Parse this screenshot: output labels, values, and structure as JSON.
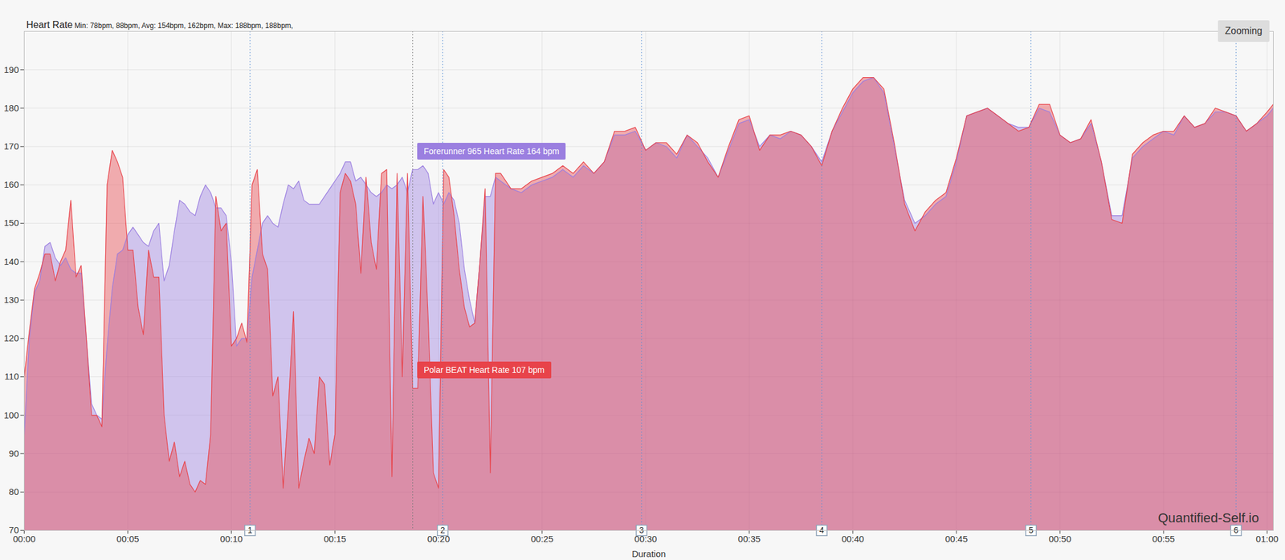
{
  "chart_data": {
    "type": "area",
    "title": "Heart Rate",
    "subtitle": "Min: 78bpm, 88bpm, Avg: 154bpm, 162bpm, Max: 188bpm, 188bpm,",
    "xlabel": "Duration",
    "button": "Zooming",
    "watermark": "Quantified-Self.io",
    "grid": true,
    "xlim": [
      0,
      60.3
    ],
    "ylim": [
      70,
      200
    ],
    "yticks": [
      70,
      80,
      90,
      100,
      110,
      120,
      130,
      140,
      150,
      160,
      170,
      180,
      190
    ],
    "xticks": [
      {
        "value": 0,
        "label": "00:00"
      },
      {
        "value": 5,
        "label": "00:05"
      },
      {
        "value": 10,
        "label": "00:10"
      },
      {
        "value": 15,
        "label": "00:15"
      },
      {
        "value": 20,
        "label": "00:20"
      },
      {
        "value": 25,
        "label": "00:25"
      },
      {
        "value": 30,
        "label": "00:30"
      },
      {
        "value": 35,
        "label": "00:35"
      },
      {
        "value": 40,
        "label": "00:40"
      },
      {
        "value": 45,
        "label": "00:45"
      },
      {
        "value": 50,
        "label": "00:50"
      },
      {
        "value": 55,
        "label": "00:55"
      },
      {
        "value": 60,
        "label": "01:00"
      }
    ],
    "laps": [
      {
        "x": 10.9,
        "label": "1"
      },
      {
        "x": 20.2,
        "label": "2"
      },
      {
        "x": 29.8,
        "label": "3"
      },
      {
        "x": 38.5,
        "label": "4"
      },
      {
        "x": 48.6,
        "label": "5"
      },
      {
        "x": 58.5,
        "label": "6"
      }
    ],
    "tooltip": {
      "x": 18.75,
      "values": [
        164,
        107
      ],
      "labels": [
        "Forerunner 965 Heart Rate 164 bpm",
        "Polar BEAT Heart Rate 107 bpm"
      ]
    },
    "x": [
      0,
      0.25,
      0.5,
      0.75,
      1,
      1.25,
      1.5,
      1.75,
      2,
      2.25,
      2.5,
      2.75,
      3,
      3.25,
      3.5,
      3.75,
      4,
      4.25,
      4.5,
      4.75,
      5,
      5.25,
      5.5,
      5.75,
      6,
      6.25,
      6.5,
      6.75,
      7,
      7.25,
      7.5,
      7.75,
      8,
      8.25,
      8.5,
      8.75,
      9,
      9.25,
      9.5,
      9.75,
      10,
      10.25,
      10.5,
      10.75,
      11,
      11.25,
      11.5,
      11.75,
      12,
      12.25,
      12.5,
      12.75,
      13,
      13.25,
      13.5,
      13.75,
      14,
      14.25,
      14.5,
      14.75,
      15,
      15.25,
      15.5,
      15.75,
      16,
      16.25,
      16.5,
      16.75,
      17,
      17.25,
      17.5,
      17.75,
      18,
      18.25,
      18.5,
      18.75,
      19,
      19.25,
      19.5,
      19.75,
      20,
      20.25,
      20.5,
      20.75,
      21,
      21.25,
      21.5,
      21.75,
      22,
      22.25,
      22.5,
      22.75,
      23,
      23.5,
      24,
      24.5,
      25,
      25.5,
      26,
      26.5,
      27,
      27.5,
      28,
      28.5,
      29,
      29.5,
      30,
      30.5,
      31,
      31.5,
      32,
      32.5,
      33,
      33.5,
      34,
      34.5,
      35,
      35.5,
      36,
      36.5,
      37,
      37.5,
      38,
      38.5,
      39,
      39.5,
      40,
      40.5,
      41,
      41.5,
      42,
      42.5,
      43,
      43.5,
      44,
      44.5,
      45,
      45.5,
      46,
      46.5,
      47,
      47.5,
      48,
      48.5,
      49,
      49.5,
      50,
      50.5,
      51,
      51.5,
      52,
      52.5,
      53,
      53.5,
      54,
      54.5,
      55,
      55.5,
      56,
      56.5,
      57,
      57.5,
      58,
      58.5,
      59,
      59.5,
      60,
      60.3
    ],
    "series": [
      {
        "name": "Forerunner 965",
        "color": "#9b7fe0",
        "values": [
          95,
          120,
          132,
          135,
          144,
          145,
          141,
          139,
          141,
          138,
          137,
          137,
          120,
          103,
          100,
          99,
          118,
          133,
          142,
          143,
          147,
          149,
          147,
          145,
          144,
          148,
          150,
          135,
          139,
          148,
          156,
          155,
          153,
          152,
          157,
          160,
          158,
          154,
          154,
          152,
          140,
          118,
          120,
          120,
          136,
          143,
          150,
          152,
          150,
          149,
          155,
          160,
          159,
          161,
          156,
          155,
          155,
          155,
          157,
          159,
          161,
          163,
          166,
          166,
          161,
          162,
          160,
          158,
          157,
          158,
          160,
          159,
          160,
          162,
          158,
          164,
          164,
          165,
          163,
          155,
          158,
          155,
          158,
          156,
          150,
          138,
          130,
          124,
          140,
          157,
          157,
          162,
          161,
          159,
          158,
          160,
          161,
          162,
          164,
          162,
          165,
          163,
          166,
          173,
          173,
          174,
          169,
          171,
          170,
          167,
          173,
          170,
          167,
          162,
          169,
          176,
          177,
          170,
          173,
          172,
          174,
          173,
          170,
          166,
          174,
          179,
          184,
          187,
          188,
          184,
          170,
          156,
          150,
          152,
          155,
          157,
          166,
          178,
          179,
          180,
          178,
          176,
          175,
          175,
          180,
          179,
          173,
          171,
          172,
          176,
          166,
          152,
          152,
          167,
          170,
          172,
          174,
          173,
          178,
          175,
          176,
          179,
          179,
          178,
          174,
          176,
          178,
          180
        ]
      },
      {
        "name": "Polar BEAT",
        "color": "#e8434a",
        "values": [
          110,
          122,
          133,
          137,
          142,
          142,
          135,
          140,
          143,
          156,
          136,
          139,
          120,
          100,
          100,
          97,
          160,
          169,
          166,
          162,
          143,
          143,
          128,
          121,
          143,
          136,
          136,
          100,
          88,
          93,
          84,
          88,
          82,
          80,
          83,
          82,
          95,
          157,
          148,
          150,
          118,
          120,
          124,
          119,
          160,
          164,
          142,
          138,
          105,
          110,
          81,
          102,
          127,
          81,
          88,
          94,
          90,
          110,
          108,
          87,
          95,
          158,
          163,
          161,
          155,
          137,
          162,
          145,
          138,
          163,
          164,
          84,
          163,
          110,
          163,
          107,
          107,
          157,
          125,
          85,
          81,
          164,
          162,
          152,
          138,
          128,
          123,
          124,
          140,
          159,
          85,
          163,
          163,
          159,
          159,
          161,
          162,
          163,
          165,
          163,
          166,
          163,
          166,
          174,
          174,
          175,
          169,
          171,
          171,
          168,
          173,
          171,
          166,
          162,
          170,
          177,
          178,
          169,
          173,
          173,
          174,
          173,
          170,
          165,
          174,
          180,
          185,
          188,
          188,
          185,
          171,
          155,
          148,
          153,
          156,
          158,
          167,
          178,
          179,
          180,
          178,
          176,
          174,
          175,
          181,
          181,
          173,
          171,
          172,
          177,
          166,
          151,
          150,
          168,
          171,
          173,
          174,
          174,
          178,
          175,
          176,
          180,
          179,
          178,
          174,
          176,
          179,
          181
        ]
      }
    ]
  }
}
